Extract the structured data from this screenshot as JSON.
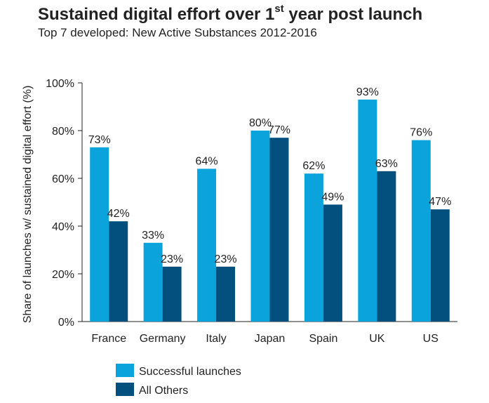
{
  "title": {
    "main_before": "Sustained digital effort over 1",
    "main_sup": "st",
    "main_after": " year post launch",
    "subtitle": "Top 7 developed: New Active Substances 2012-2016"
  },
  "colors": {
    "successful": "#0aa3dc",
    "others": "#03507e",
    "axis": "#222222"
  },
  "chart_data": {
    "type": "bar",
    "title": "Sustained digital effort over 1st year post launch",
    "subtitle": "Top 7 developed: New Active Substances 2012-2016",
    "xlabel": "",
    "ylabel": "Share of launches w/ sustained digital effort (%)",
    "categories": [
      "France",
      "Germany",
      "Italy",
      "Japan",
      "Spain",
      "UK",
      "US"
    ],
    "series": [
      {
        "name": "Successful launches",
        "values": [
          73,
          33,
          64,
          80,
          62,
          93,
          76
        ],
        "labels": [
          "73%",
          "33%",
          "64%",
          "80%",
          "62%",
          "93%",
          "76%"
        ]
      },
      {
        "name": "All Others",
        "values": [
          42,
          23,
          23,
          77,
          49,
          63,
          47
        ],
        "labels": [
          "42%",
          "23%",
          "23%",
          "77%",
          "49%",
          "63%",
          "47%"
        ]
      }
    ],
    "ylim": [
      0,
      100
    ],
    "yticks": [
      "0%",
      "20%",
      "40%",
      "60%",
      "80%",
      "100%"
    ],
    "grid": false,
    "legend": "bottom"
  }
}
